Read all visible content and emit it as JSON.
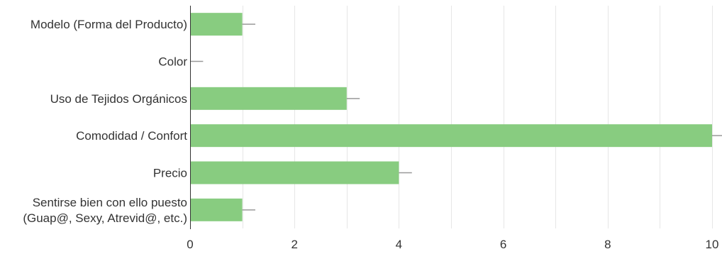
{
  "chart_data": {
    "type": "bar",
    "orientation": "horizontal",
    "categories": [
      [
        "Modelo (Forma del Producto)"
      ],
      [
        "Color"
      ],
      [
        "Uso de Tejidos Orgánicos"
      ],
      [
        "Comodidad / Confort"
      ],
      [
        "Precio"
      ],
      [
        "Sentirse bien con ello puesto",
        "(Guap@, Sexy, Atrevid@, etc.)"
      ]
    ],
    "values": [
      1,
      0,
      3,
      10,
      4,
      1
    ],
    "error_bars": [
      0.25,
      0.25,
      0.25,
      0.25,
      0.25,
      0.25
    ],
    "xlim": [
      0,
      10
    ],
    "x_ticks": [
      0,
      2,
      4,
      6,
      8,
      10
    ],
    "grid": true,
    "bar_color": "#88cc80",
    "axis_color": "#333333",
    "grid_color": "#e6e6e6",
    "error_color": "#999999"
  }
}
